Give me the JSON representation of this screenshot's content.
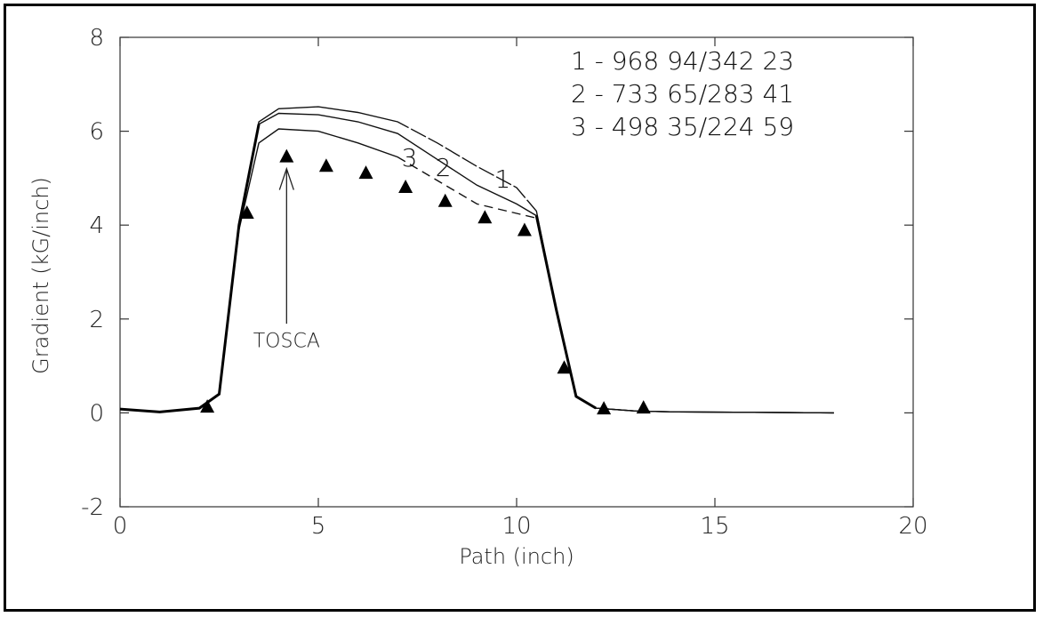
{
  "chart_data": {
    "type": "line",
    "xlabel": "Path (inch)",
    "ylabel": "Gradient (kG/inch)",
    "xlim": [
      0,
      20
    ],
    "ylim": [
      -2,
      8
    ],
    "xticks": [
      "0",
      "5",
      "10",
      "15",
      "20"
    ],
    "yticks": [
      "-2",
      "0",
      "2",
      "4",
      "6",
      "8"
    ],
    "grid": false,
    "legend_position": "top-right",
    "legend": [
      "1 - 968 94/342 23",
      "2 - 733 65/283 41",
      "3 - 498 35/224 59"
    ],
    "series": [
      {
        "name": "1",
        "style": "dash-dot",
        "x": [
          0,
          1,
          2,
          2.5,
          3,
          3.5,
          4,
          5,
          6,
          7,
          8,
          9,
          10,
          10.5,
          11,
          11.5,
          12,
          13,
          14,
          18
        ],
        "y": [
          0.08,
          0.02,
          0.1,
          0.4,
          4.0,
          6.2,
          6.48,
          6.52,
          6.4,
          6.2,
          5.75,
          5.25,
          4.8,
          4.3,
          2.2,
          0.35,
          0.1,
          0.04,
          0.02,
          0.0
        ]
      },
      {
        "name": "2",
        "style": "solid",
        "x": [
          0,
          1,
          2,
          2.5,
          3,
          3.5,
          4,
          5,
          6,
          7,
          8,
          9,
          10,
          10.5,
          11,
          11.5,
          12,
          13,
          14,
          18
        ],
        "y": [
          0.08,
          0.02,
          0.1,
          0.4,
          4.0,
          6.15,
          6.38,
          6.35,
          6.2,
          5.95,
          5.4,
          4.85,
          4.45,
          4.2,
          2.2,
          0.35,
          0.1,
          0.04,
          0.02,
          0.0
        ]
      },
      {
        "name": "3",
        "style": "dashed",
        "x": [
          0,
          1,
          2,
          2.5,
          3,
          3.5,
          4,
          5,
          6,
          7,
          8,
          9,
          10,
          10.5,
          11,
          11.5,
          12,
          13,
          14,
          18
        ],
        "y": [
          0.08,
          0.02,
          0.1,
          0.4,
          3.9,
          5.75,
          6.05,
          6.0,
          5.75,
          5.45,
          4.95,
          4.45,
          4.25,
          4.15,
          2.2,
          0.35,
          0.1,
          0.04,
          0.02,
          0.0
        ]
      },
      {
        "name": "TOSCA",
        "style": "triangle-markers",
        "x": [
          2.2,
          3.2,
          4.2,
          5.2,
          6.2,
          7.2,
          8.2,
          9.2,
          10.2,
          11.2,
          12.2,
          13.2
        ],
        "y": [
          0.12,
          4.25,
          5.45,
          5.25,
          5.1,
          4.8,
          4.5,
          4.15,
          3.88,
          0.95,
          0.08,
          0.1
        ]
      }
    ],
    "curve_labels": [
      "3",
      "2",
      "1"
    ],
    "annotation": "TOSCA"
  }
}
